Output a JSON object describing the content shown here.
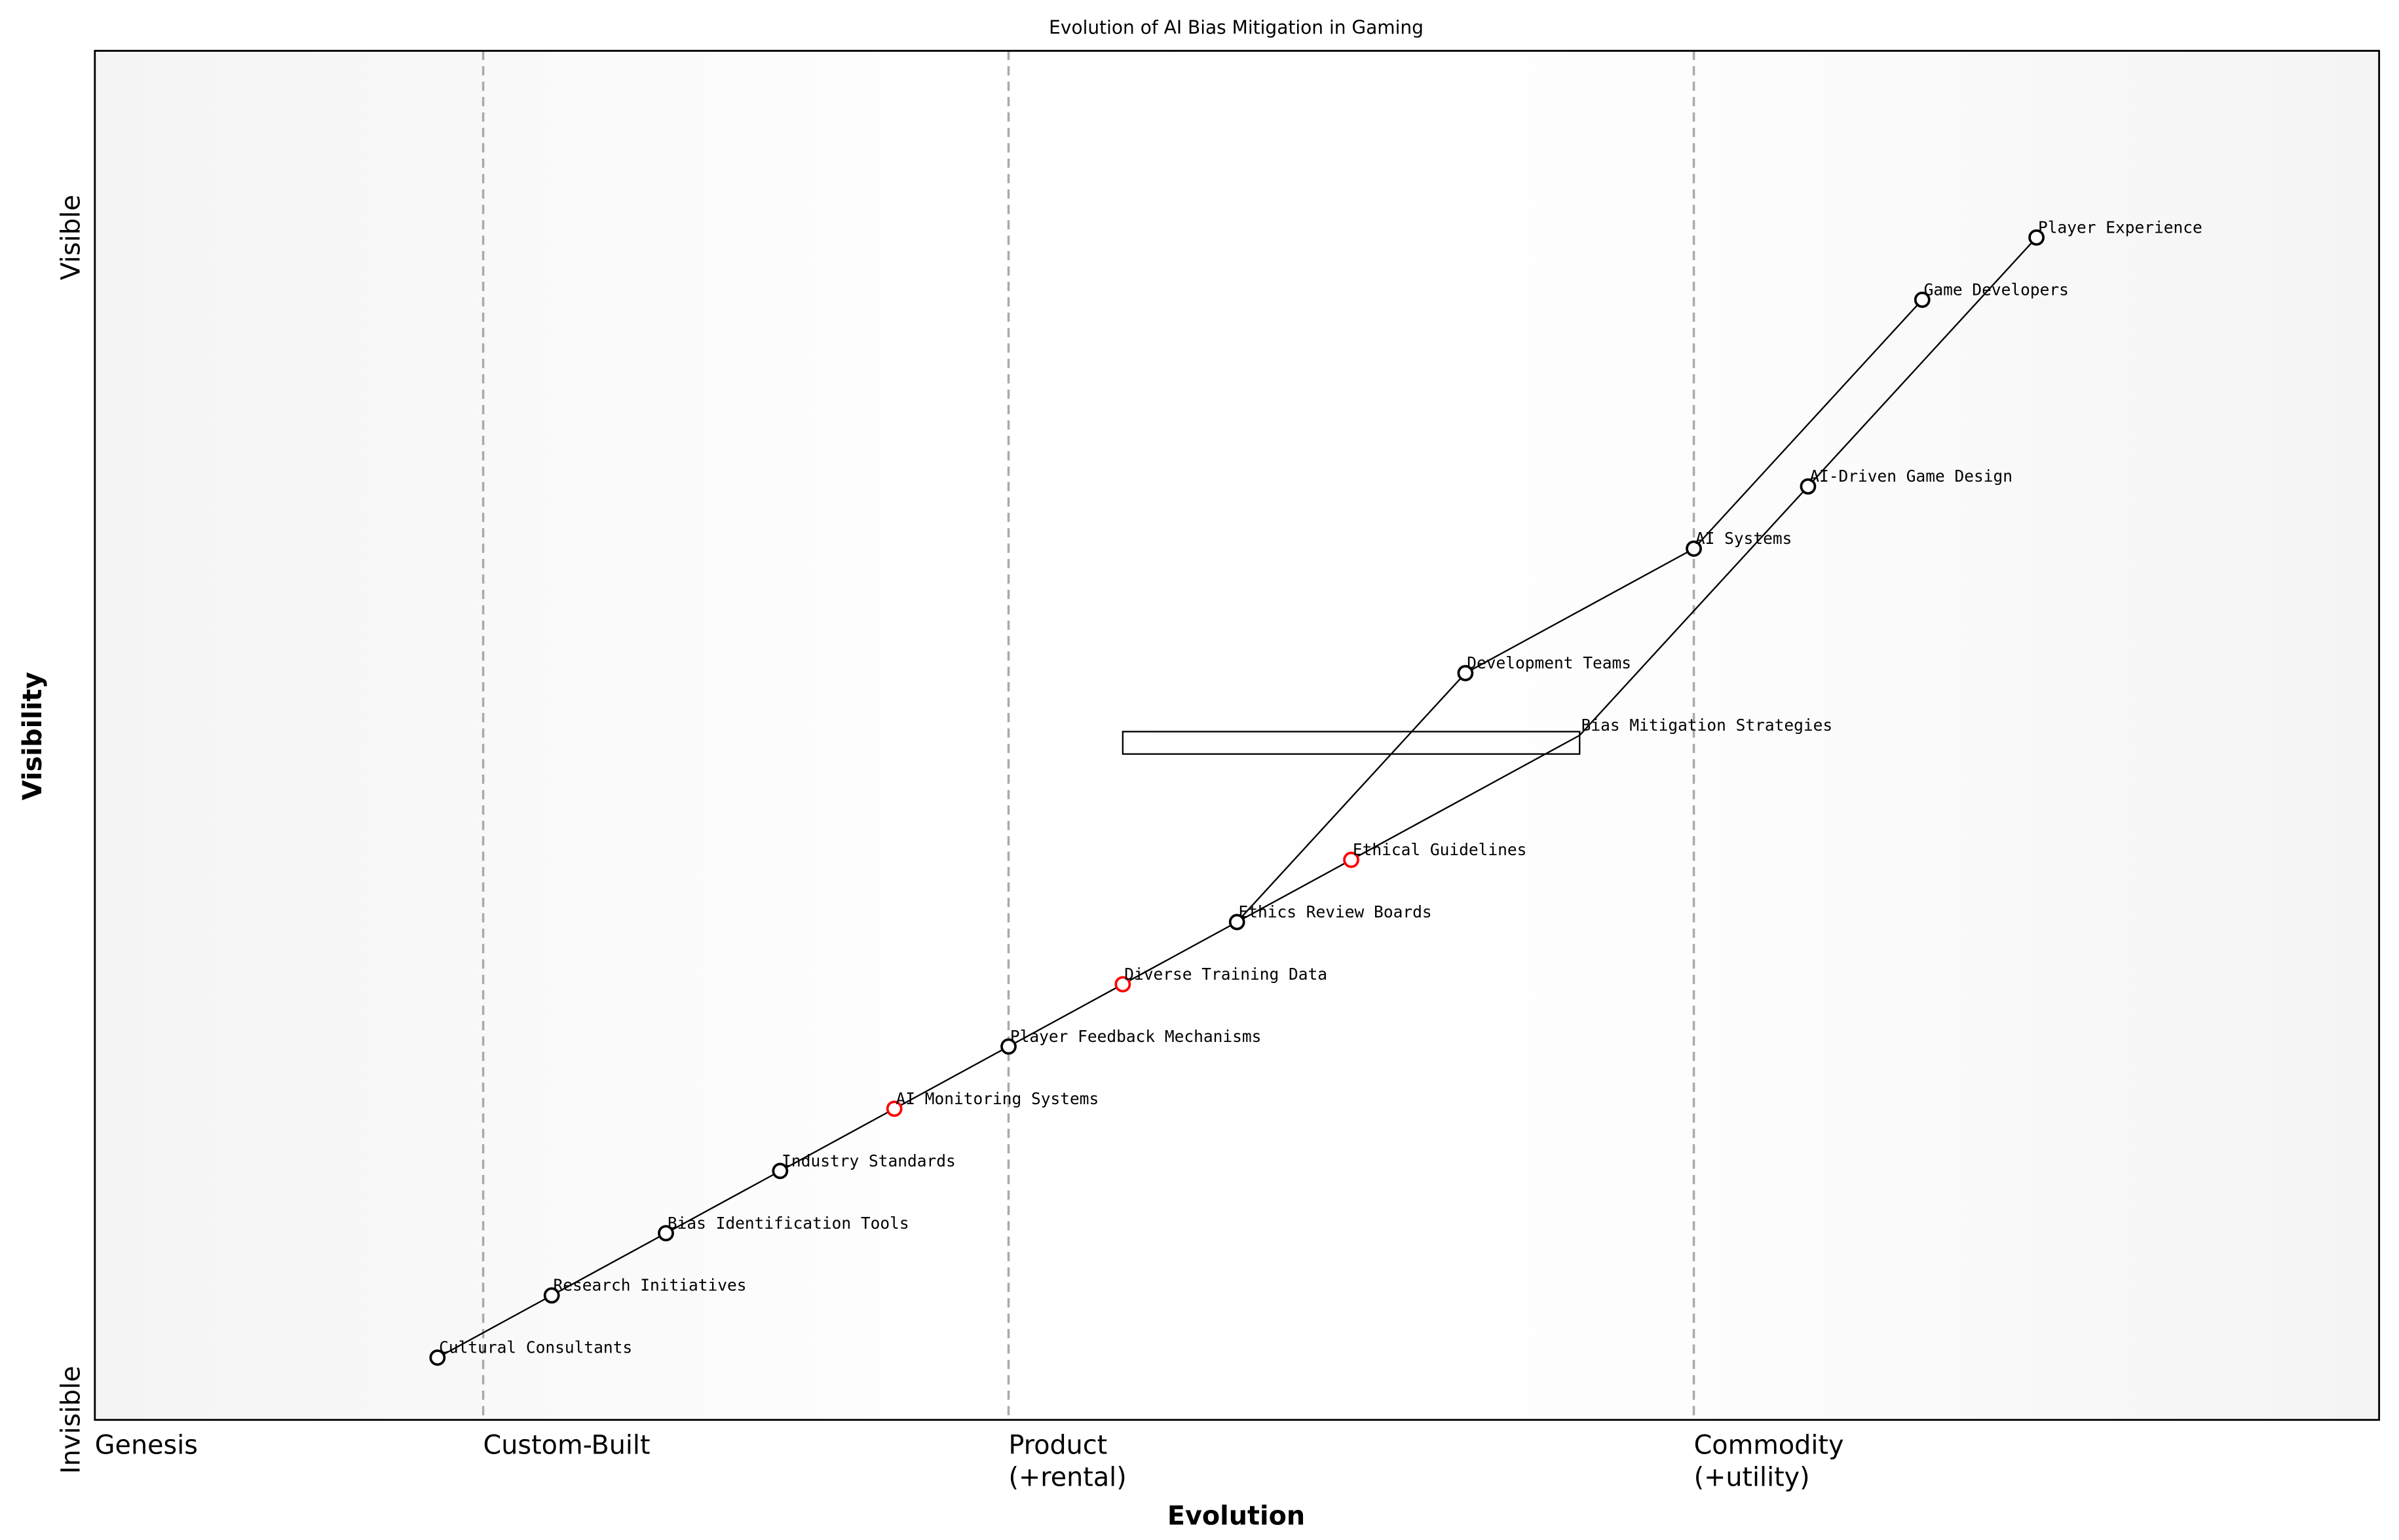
{
  "chart_data": {
    "type": "scatter",
    "title": "Evolution of AI Bias Mitigation in Gaming",
    "xlabel": "Evolution",
    "ylabel": "Visibility",
    "xlim": [
      0,
      1
    ],
    "ylim": [
      0,
      1.1
    ],
    "grid": false,
    "x_stage_ticks": [
      {
        "value": 0.0,
        "label": "Genesis"
      },
      {
        "value": 0.17,
        "label": "Custom-Built"
      },
      {
        "value": 0.4,
        "label": "Product\n(+rental)"
      },
      {
        "value": 0.7,
        "label": "Commodity\n(+utility)"
      }
    ],
    "y_ticks": [
      {
        "value": 0.0,
        "label": "Invisible"
      },
      {
        "value": 0.95,
        "label": "Visible"
      }
    ],
    "colors": {
      "node": "#000000",
      "highlight_node": "#ff0000",
      "stage_divider": "#aaaaaa",
      "edge_shade": "#f4f4f4"
    },
    "nodes": [
      {
        "name": "Cultural Consultants",
        "x": 0.15,
        "y": 0.05,
        "highlight": false
      },
      {
        "name": "Research Initiatives",
        "x": 0.2,
        "y": 0.1,
        "highlight": false
      },
      {
        "name": "Bias Identification Tools",
        "x": 0.25,
        "y": 0.15,
        "highlight": false
      },
      {
        "name": "Industry Standards",
        "x": 0.3,
        "y": 0.2,
        "highlight": false
      },
      {
        "name": "AI Monitoring Systems",
        "x": 0.35,
        "y": 0.25,
        "highlight": true
      },
      {
        "name": "Player Feedback Mechanisms",
        "x": 0.4,
        "y": 0.3,
        "highlight": false
      },
      {
        "name": "Diverse Training Data",
        "x": 0.45,
        "y": 0.35,
        "highlight": true
      },
      {
        "name": "Ethics Review Boards",
        "x": 0.5,
        "y": 0.4,
        "highlight": false
      },
      {
        "name": "Ethical Guidelines",
        "x": 0.55,
        "y": 0.45,
        "highlight": true
      },
      {
        "name": "Bias Mitigation Strategies",
        "x": 0.65,
        "y": 0.55,
        "highlight": true,
        "hidden_marker": true
      },
      {
        "name": "Development Teams",
        "x": 0.6,
        "y": 0.6,
        "highlight": false
      },
      {
        "name": "AI Systems",
        "x": 0.7,
        "y": 0.7,
        "highlight": false
      },
      {
        "name": "AI-Driven Game Design",
        "x": 0.75,
        "y": 0.75,
        "highlight": false
      },
      {
        "name": "Game Developers",
        "x": 0.8,
        "y": 0.9,
        "highlight": false
      },
      {
        "name": "Player Experience",
        "x": 0.85,
        "y": 0.95,
        "highlight": false
      }
    ],
    "links": [
      [
        "Cultural Consultants",
        "Research Initiatives"
      ],
      [
        "Research Initiatives",
        "Bias Identification Tools"
      ],
      [
        "Bias Identification Tools",
        "Industry Standards"
      ],
      [
        "Industry Standards",
        "AI Monitoring Systems"
      ],
      [
        "AI Monitoring Systems",
        "Player Feedback Mechanisms"
      ],
      [
        "Player Feedback Mechanisms",
        "Diverse Training Data"
      ],
      [
        "Diverse Training Data",
        "Ethics Review Boards"
      ],
      [
        "Ethics Review Boards",
        "Ethical Guidelines"
      ],
      [
        "Ethical Guidelines",
        "Bias Mitigation Strategies"
      ],
      [
        "Bias Mitigation Strategies",
        "AI-Driven Game Design"
      ],
      [
        "AI-Driven Game Design",
        "Player Experience"
      ],
      [
        "Ethics Review Boards",
        "Development Teams"
      ],
      [
        "Development Teams",
        "AI Systems"
      ],
      [
        "AI Systems",
        "Game Developers"
      ]
    ],
    "boxes": [
      {
        "x0": 0.45,
        "x1": 0.65,
        "y0": 0.535,
        "y1": 0.553
      }
    ]
  }
}
